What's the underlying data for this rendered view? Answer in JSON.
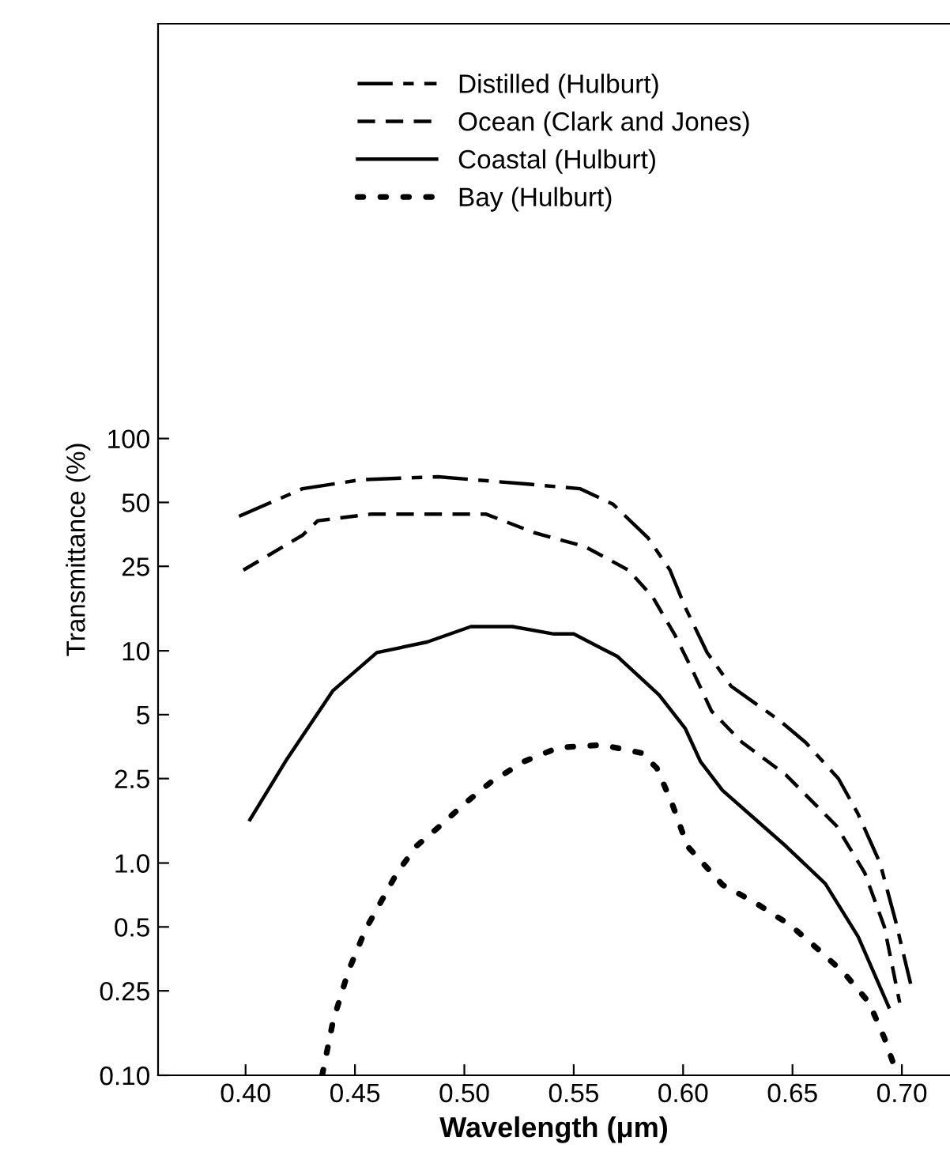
{
  "chart_data": {
    "type": "line",
    "xlabel": "Wavelength (μm)",
    "ylabel": "Transmittance (%)",
    "log": "y",
    "grid": false,
    "legend": "top",
    "marker": "none",
    "xlim": [
      0.36,
      0.722
    ],
    "ylim": [
      0.1,
      9000
    ],
    "xticks": [
      {
        "value": 0.4,
        "label": "0.40"
      },
      {
        "value": 0.45,
        "label": "0.45"
      },
      {
        "value": 0.5,
        "label": "0.50"
      },
      {
        "value": 0.55,
        "label": "0.55"
      },
      {
        "value": 0.6,
        "label": "0.60"
      },
      {
        "value": 0.65,
        "label": "0.65"
      },
      {
        "value": 0.7,
        "label": "0.70"
      }
    ],
    "yticks": [
      {
        "value": 0.1,
        "label": "0.10"
      },
      0.25,
      0.5,
      {
        "value": 1,
        "label": "1.0"
      },
      2.5,
      5,
      10,
      25,
      50,
      100
    ],
    "series": [
      {
        "name": "Distilled (Hulburt)",
        "color": "#000000",
        "line_style": "dashdot",
        "x": [
          0.397,
          0.426,
          0.453,
          0.488,
          0.529,
          0.553,
          0.568,
          0.584,
          0.594,
          0.601,
          0.611,
          0.622,
          0.644,
          0.656,
          0.671,
          0.68,
          0.69,
          0.697,
          0.704
        ],
        "values": [
          43,
          58,
          64,
          66,
          61,
          58,
          49,
          34,
          24,
          16,
          9.8,
          6.8,
          4.7,
          3.7,
          2.5,
          1.7,
          1.0,
          0.54,
          0.27
        ]
      },
      {
        "name": "Ocean (Clark and Jones)",
        "color": "#000000",
        "line_style": "dashed",
        "x": [
          0.399,
          0.426,
          0.433,
          0.457,
          0.486,
          0.51,
          0.532,
          0.555,
          0.575,
          0.586,
          0.596,
          0.604,
          0.613,
          0.627,
          0.647,
          0.67,
          0.683,
          0.692,
          0.699
        ],
        "values": [
          24,
          35,
          41,
          44,
          44,
          44,
          36,
          31,
          24,
          18,
          12,
          8.2,
          5.2,
          3.7,
          2.6,
          1.5,
          0.9,
          0.5,
          0.22
        ]
      },
      {
        "name": "Coastal (Hulburt)",
        "color": "#000000",
        "line_style": "solid",
        "x": [
          0.402,
          0.419,
          0.44,
          0.46,
          0.483,
          0.503,
          0.522,
          0.541,
          0.55,
          0.57,
          0.589,
          0.601,
          0.608,
          0.618,
          0.647,
          0.665,
          0.68,
          0.694
        ],
        "values": [
          1.6,
          3.1,
          6.5,
          9.8,
          11,
          13,
          13,
          12,
          12,
          9.4,
          6.2,
          4.3,
          3.0,
          2.2,
          1.2,
          0.8,
          0.45,
          0.21
        ]
      },
      {
        "name": "Bay (Hulburt)",
        "color": "#000000",
        "line_style": "dotted",
        "x": [
          0.435,
          0.44,
          0.447,
          0.455,
          0.462,
          0.469,
          0.478,
          0.489,
          0.5,
          0.512,
          0.527,
          0.543,
          0.563,
          0.581,
          0.588,
          0.595,
          0.602,
          0.618,
          0.633,
          0.649,
          0.662,
          0.674,
          0.685,
          0.692,
          0.698
        ],
        "values": [
          0.1,
          0.18,
          0.31,
          0.49,
          0.66,
          0.89,
          1.2,
          1.5,
          1.9,
          2.4,
          3.0,
          3.5,
          3.6,
          3.3,
          2.8,
          1.9,
          1.2,
          0.79,
          0.65,
          0.51,
          0.39,
          0.3,
          0.22,
          0.15,
          0.1
        ]
      }
    ]
  }
}
